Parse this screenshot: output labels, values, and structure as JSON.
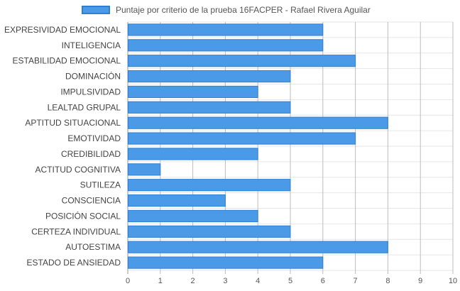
{
  "chart_data": {
    "type": "bar",
    "orientation": "horizontal",
    "legend": {
      "position": "top-center"
    },
    "series": [
      {
        "name": "Puntaje por criterio de la prueba 16FACPER - Rafael Rivera Aguilar",
        "color": "#4a9ae8",
        "border_color": "#2f7fd6",
        "values": [
          6,
          6,
          7,
          5,
          4,
          5,
          8,
          7,
          4,
          1,
          5,
          3,
          4,
          5,
          8,
          6
        ]
      }
    ],
    "categories": [
      "EXPRESIVIDAD EMOCIONAL",
      "INTELIGENCIA",
      "ESTABILIDAD EMOCIONAL",
      "DOMINACIÓN",
      "IMPULSIVIDAD",
      "LEALTAD GRUPAL",
      "APTITUD SITUACIONAL",
      "EMOTIVIDAD",
      "CREDIBILIDAD",
      "ACTITUD COGNITIVA",
      "SUTILEZA",
      "CONSCIENCIA",
      "POSICIÓN SOCIAL",
      "CERTEZA INDIVIDUAL",
      "AUTOESTIMA",
      "ESTADO DE ANSIEDAD"
    ],
    "xlim": [
      0,
      10
    ],
    "xticks": [
      "0",
      "1",
      "2",
      "3",
      "4",
      "5",
      "6",
      "7",
      "8",
      "9",
      "10"
    ],
    "grid": true
  }
}
